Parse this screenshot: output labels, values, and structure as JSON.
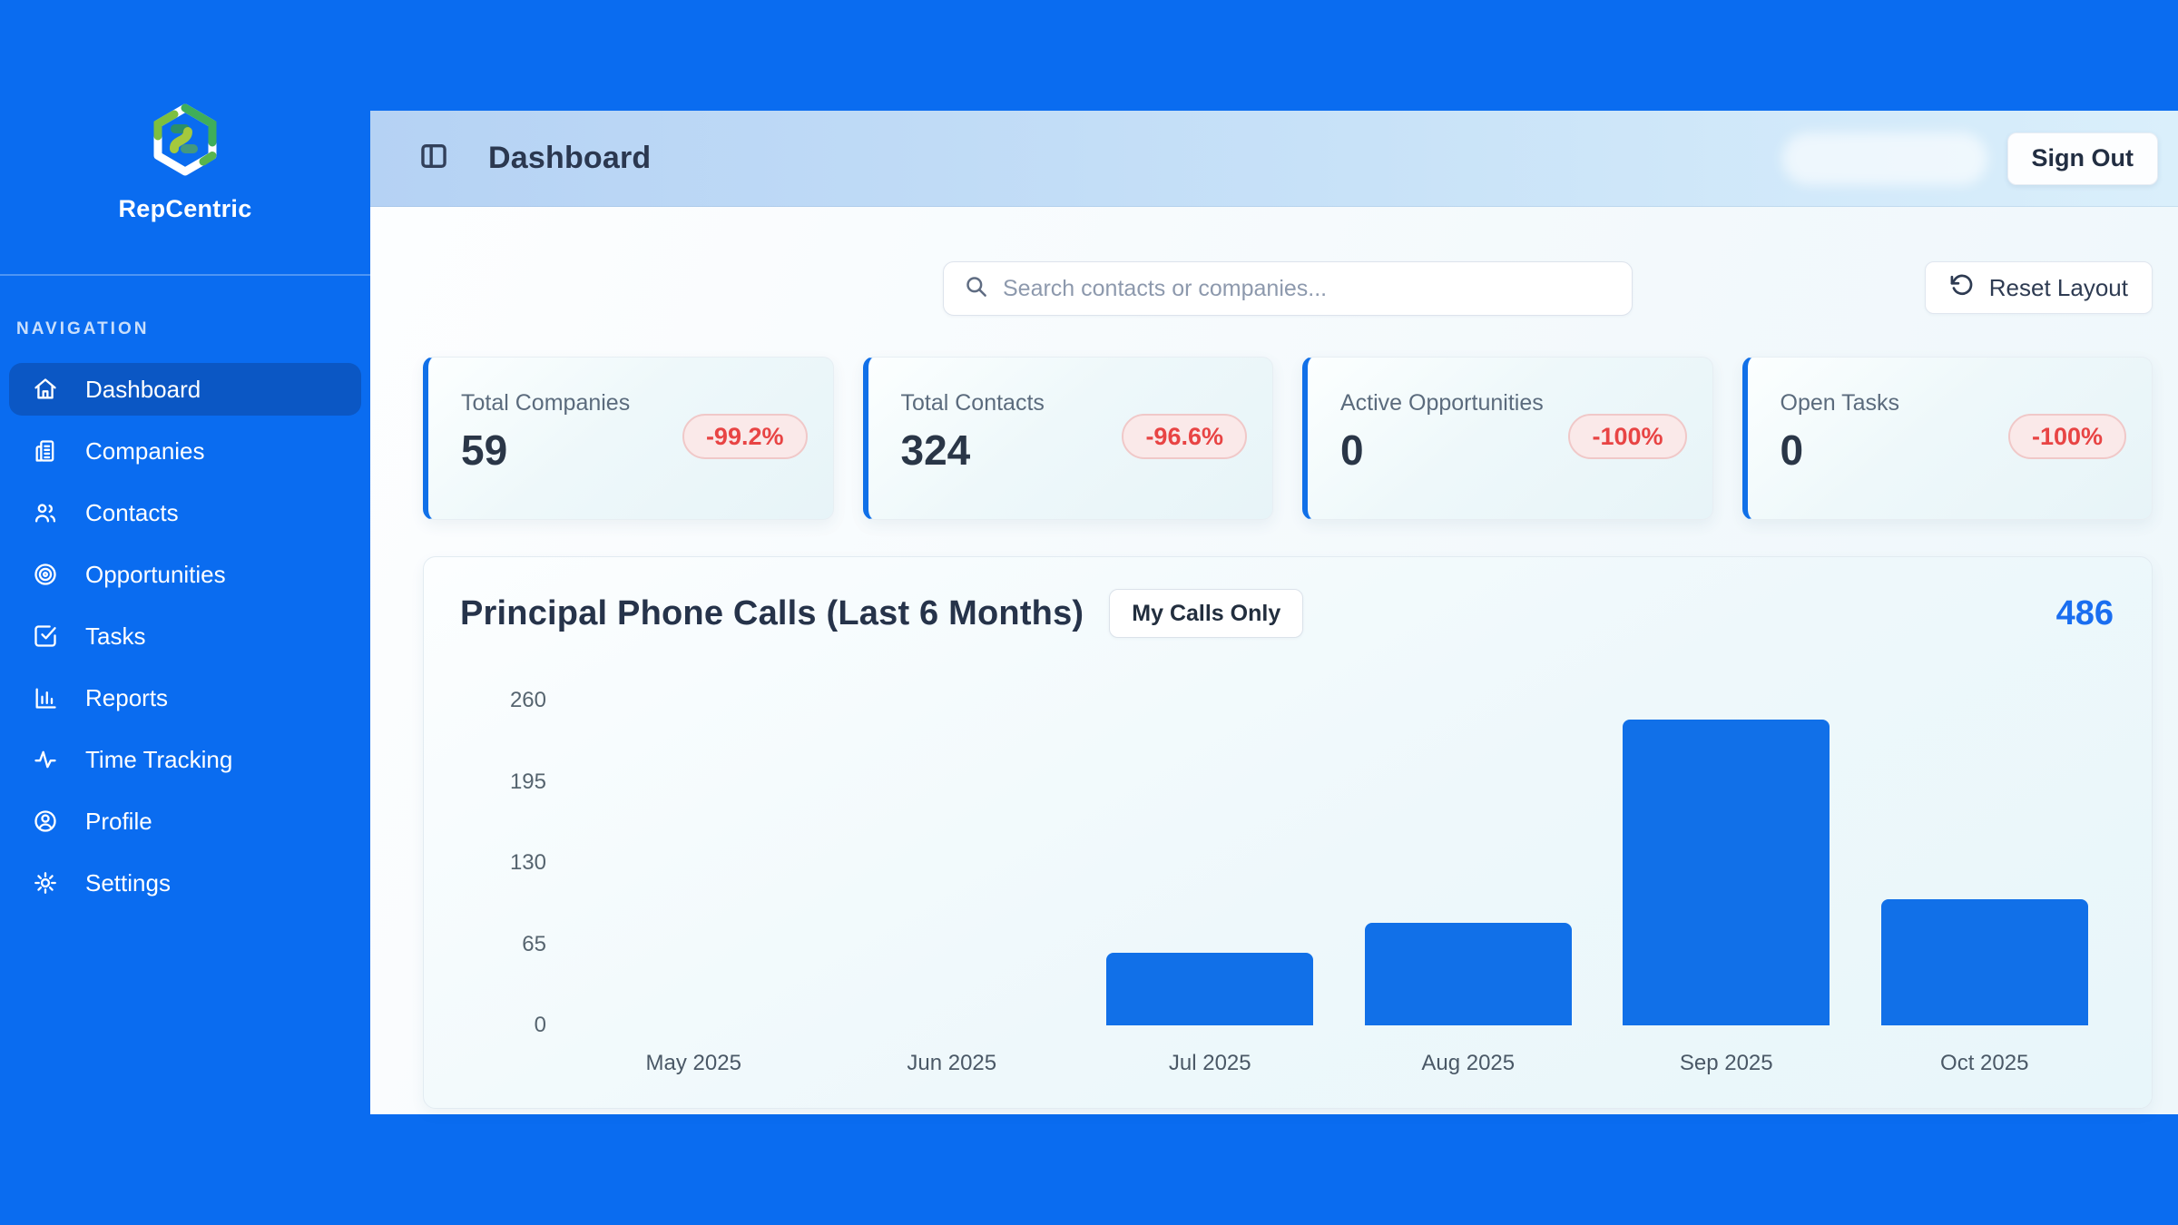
{
  "brand": {
    "name": "RepCentric"
  },
  "sidebar": {
    "section_label": "NAVIGATION",
    "items": [
      {
        "label": "Dashboard",
        "icon": "home-icon",
        "active": true
      },
      {
        "label": "Companies",
        "icon": "building-icon",
        "active": false
      },
      {
        "label": "Contacts",
        "icon": "users-icon",
        "active": false
      },
      {
        "label": "Opportunities",
        "icon": "target-icon",
        "active": false
      },
      {
        "label": "Tasks",
        "icon": "check-square-icon",
        "active": false
      },
      {
        "label": "Reports",
        "icon": "bar-chart-icon",
        "active": false
      },
      {
        "label": "Time Tracking",
        "icon": "activity-icon",
        "active": false
      },
      {
        "label": "Profile",
        "icon": "user-circle-icon",
        "active": false
      },
      {
        "label": "Settings",
        "icon": "gear-icon",
        "active": false
      }
    ]
  },
  "header": {
    "title": "Dashboard",
    "sign_out_label": "Sign Out"
  },
  "toolbar": {
    "search_placeholder": "Search contacts or companies...",
    "reset_layout_label": "Reset Layout"
  },
  "stats": [
    {
      "label": "Total Companies",
      "value": "59",
      "change": "-99.2%"
    },
    {
      "label": "Total Contacts",
      "value": "324",
      "change": "-96.6%"
    },
    {
      "label": "Active Opportunities",
      "value": "0",
      "change": "-100%"
    },
    {
      "label": "Open Tasks",
      "value": "0",
      "change": "-100%"
    }
  ],
  "chart_card": {
    "title": "Principal Phone Calls (Last 6 Months)",
    "filter_label": "My Calls Only",
    "total": "486"
  },
  "chart_data": {
    "type": "bar",
    "title": "Principal Phone Calls (Last 6 Months)",
    "categories": [
      "May 2025",
      "Jun 2025",
      "Jul 2025",
      "Aug 2025",
      "Sep 2025",
      "Oct 2025"
    ],
    "values": [
      0,
      0,
      58,
      82,
      245,
      101
    ],
    "total": 486,
    "yticks": [
      0,
      65,
      130,
      195,
      260
    ],
    "ylim": [
      0,
      260
    ],
    "xlabel": "",
    "ylabel": "",
    "grid": false,
    "legend": false,
    "bar_color": "#1170e8"
  },
  "colors": {
    "page_blue": "#0a6cf0",
    "active_nav": "#0b57c4",
    "bar_blue": "#1170e8",
    "badge_red": "#e84444",
    "badge_bg": "#fae9e9",
    "total_blue": "#1a6ef0"
  }
}
